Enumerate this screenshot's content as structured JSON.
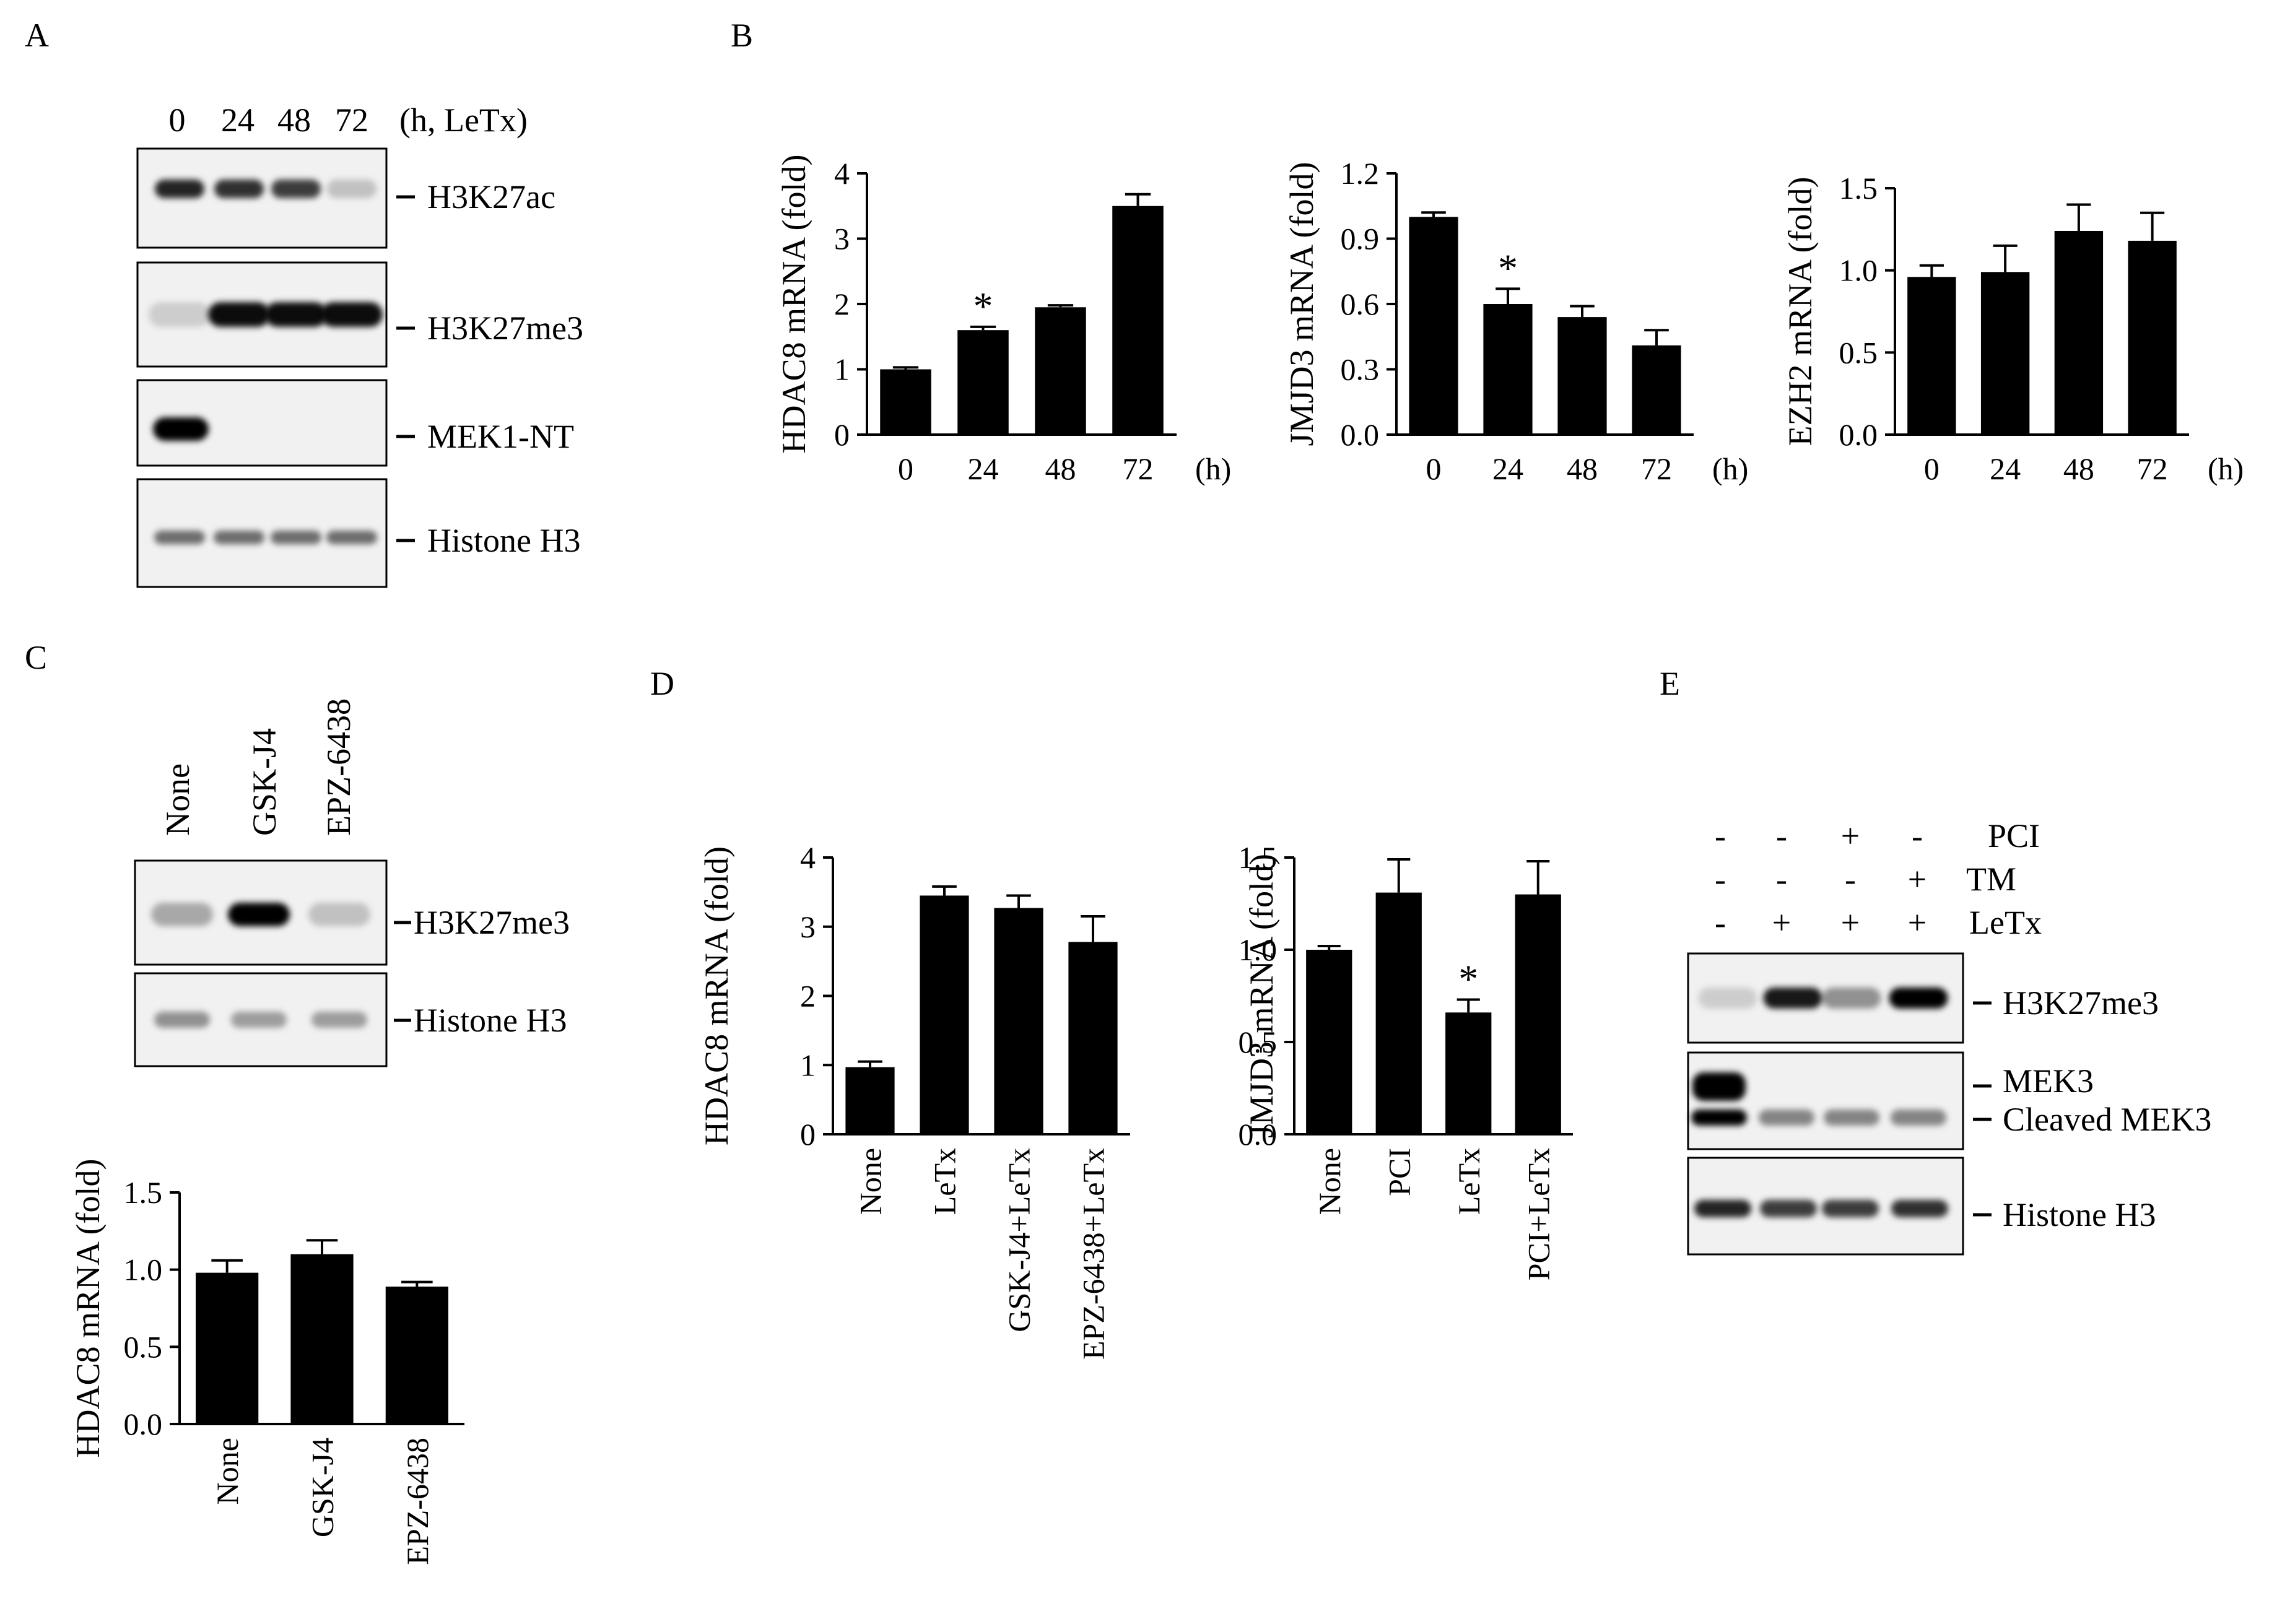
{
  "panels": {
    "A": {
      "letter": "A",
      "lanes": [
        "0",
        "24",
        "48",
        "72"
      ],
      "lane_suffix": "(h, LeTx)",
      "blots": [
        {
          "label": "H3K27ac",
          "band_intensity": [
            0.85,
            0.8,
            0.75,
            0.2
          ]
        },
        {
          "label": "H3K27me3",
          "band_intensity": [
            0.15,
            0.95,
            0.95,
            0.95
          ]
        },
        {
          "label": "MEK1-NT",
          "band_intensity": [
            1.0,
            0,
            0,
            0
          ]
        },
        {
          "label": "Histone H3",
          "band_intensity": [
            0.55,
            0.55,
            0.55,
            0.55
          ]
        }
      ]
    },
    "B": {
      "letter": "B"
    },
    "C": {
      "letter": "C",
      "lanes": [
        "None",
        "GSK-J4",
        "EPZ-6438"
      ],
      "blots": [
        {
          "label": "H3K27me3",
          "band_intensity": [
            0.3,
            1.0,
            0.2
          ]
        },
        {
          "label": "Histone H3",
          "band_intensity": [
            0.4,
            0.35,
            0.35
          ]
        }
      ]
    },
    "D": {
      "letter": "D"
    },
    "E": {
      "letter": "E",
      "treatments": [
        {
          "name": "PCI",
          "signs": [
            "-",
            "-",
            "+",
            "-"
          ]
        },
        {
          "name": "TM",
          "signs": [
            "-",
            "-",
            "-",
            "+"
          ]
        },
        {
          "name": "LeTx",
          "signs": [
            "-",
            "+",
            "+",
            "+"
          ]
        }
      ],
      "blots": [
        {
          "labels": [
            "H3K27me3"
          ],
          "band_intensity": [
            0.15,
            0.9,
            0.4,
            1.0
          ]
        },
        {
          "labels": [
            "MEK3",
            "Cleaved MEK3"
          ],
          "band_intensity": [
            1.0,
            0.45,
            0.45,
            0.45
          ]
        },
        {
          "labels": [
            "Histone H3"
          ],
          "band_intensity": [
            0.85,
            0.75,
            0.75,
            0.8
          ]
        }
      ]
    }
  },
  "chart_data": [
    {
      "id": "B1",
      "type": "bar",
      "categories": [
        "0",
        "24",
        "48",
        "72"
      ],
      "values": [
        1.0,
        1.6,
        1.95,
        3.5
      ],
      "errors": [
        0.03,
        0.05,
        0.03,
        0.18
      ],
      "significance": [
        "",
        "*",
        "",
        ""
      ],
      "ylabel": "HDAC8 mRNA (fold)",
      "xunit": "(h)",
      "ylim": [
        0,
        4
      ],
      "yticks": [
        "0",
        "1",
        "2",
        "3",
        "4"
      ]
    },
    {
      "id": "B2",
      "type": "bar",
      "categories": [
        "0",
        "24",
        "48",
        "72"
      ],
      "values": [
        1.0,
        0.6,
        0.54,
        0.41
      ],
      "errors": [
        0.02,
        0.07,
        0.05,
        0.07
      ],
      "significance": [
        "",
        "*",
        "",
        ""
      ],
      "ylabel": "JMJD3 mRNA (fold)",
      "xunit": "(h)",
      "ylim": [
        0,
        1.2
      ],
      "yticks": [
        "0.0",
        "0.3",
        "0.6",
        "0.9",
        "1.2"
      ]
    },
    {
      "id": "B3",
      "type": "bar",
      "categories": [
        "0",
        "24",
        "48",
        "72"
      ],
      "values": [
        0.96,
        0.99,
        1.24,
        1.18
      ],
      "errors": [
        0.07,
        0.16,
        0.16,
        0.17
      ],
      "significance": [
        "",
        "",
        "",
        ""
      ],
      "ylabel": "EZH2 mRNA (fold)",
      "xunit": "(h)",
      "ylim": [
        0,
        1.5
      ],
      "yticks": [
        "0.0",
        "0.5",
        "1.0",
        "1.5"
      ]
    },
    {
      "id": "C1",
      "type": "bar",
      "categories": [
        "None",
        "GSK-J4",
        "EPZ-6438"
      ],
      "values": [
        0.98,
        1.1,
        0.89
      ],
      "errors": [
        0.08,
        0.09,
        0.03
      ],
      "significance": [
        "",
        "",
        ""
      ],
      "ylabel": "HDAC8 mRNA (fold)",
      "ylim": [
        0,
        1.5
      ],
      "yticks": [
        "0.0",
        "0.5",
        "1.0",
        "1.5"
      ]
    },
    {
      "id": "D1",
      "type": "bar",
      "categories": [
        "None",
        "LeTx",
        "GSK-J4+LeTx",
        "EPZ-6438+LeTx"
      ],
      "values": [
        0.97,
        3.45,
        3.27,
        2.78
      ],
      "errors": [
        0.08,
        0.13,
        0.18,
        0.37
      ],
      "significance": [
        "",
        "",
        "",
        ""
      ],
      "ylabel": "HDAC8 mRNA (fold)",
      "ylim": [
        0,
        4
      ],
      "yticks": [
        "0",
        "1",
        "2",
        "3",
        "4"
      ]
    },
    {
      "id": "D2",
      "type": "bar",
      "categories": [
        "None",
        "PCI",
        "LeTx",
        "PCI+LeTx"
      ],
      "values": [
        1.0,
        1.31,
        0.66,
        1.3
      ],
      "errors": [
        0.02,
        0.18,
        0.07,
        0.18
      ],
      "significance": [
        "",
        "",
        "*",
        ""
      ],
      "ylabel": "JMJD3 mRNA (fold)",
      "ylim": [
        0,
        1.5
      ],
      "yticks": [
        "0.0",
        "0.5",
        "1.0",
        "1.5"
      ]
    }
  ]
}
